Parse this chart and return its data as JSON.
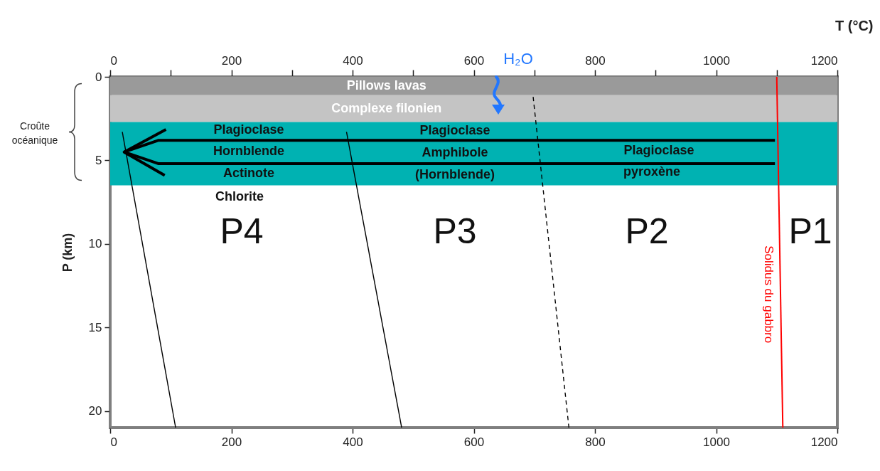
{
  "chart_data": {
    "type": "line",
    "ylabel": "P  (km)",
    "x2label": "T  (°C)",
    "xlim": [
      0,
      1200
    ],
    "xticks": [
      0,
      200,
      400,
      600,
      800,
      1000,
      1200
    ],
    "x2lim": [
      0,
      1200
    ],
    "x2ticks": [
      0,
      {
        "value": 100,
        "label": null
      },
      200,
      {
        "value": 300,
        "label": null
      },
      400,
      {
        "value": 500,
        "label": null
      },
      600,
      {
        "value": 700,
        "label": null
      },
      800,
      {
        "value": 900,
        "label": null
      },
      1000,
      {
        "value": 1100,
        "label": null
      },
      1200
    ],
    "ylim": [
      21,
      0
    ],
    "yticks": [
      0,
      5,
      10,
      15,
      20
    ],
    "grid": false,
    "marker": "none",
    "bands": [
      {
        "axis": "y",
        "from": 0,
        "to": 1.1,
        "label": "Pillows lavas",
        "color": "#9a9a9a"
      },
      {
        "axis": "y",
        "from": 1.1,
        "to": 2.7,
        "label": "Complexe filonien",
        "color": "#c4c4c4"
      },
      {
        "axis": "y",
        "from": 2.7,
        "to": 6.5,
        "color": "#00b2b2"
      }
    ],
    "series": [
      {
        "color": "#000000",
        "x": [
          20,
          108
        ],
        "values": [
          3.3,
          21
        ]
      },
      {
        "color": "#000000",
        "x": [
          390,
          481
        ],
        "values": [
          3.3,
          21
        ]
      },
      {
        "color": "#000000",
        "x": [
          698,
          757
        ],
        "values": [
          1.2,
          21
        ],
        "line_style": "dashed"
      },
      {
        "color": "#000000",
        "x": [
          1097,
          80,
          23
        ],
        "values": [
          3.8,
          3.8,
          4.5
        ]
      },
      {
        "color": "#000000",
        "x": [
          1097,
          80,
          23
        ],
        "values": [
          5.2,
          5.2,
          4.5
        ]
      },
      {
        "name": "Solidus du gabbro",
        "color": "#ff0000",
        "x": [
          1100,
          1110
        ],
        "values": [
          0,
          21
        ]
      }
    ],
    "annotations": [
      "Plagioclase",
      "Hornblende",
      "Actinote",
      "Plagioclase",
      "Amphibole",
      "(Hornblende)",
      "Plagioclase",
      "pyroxène",
      "Chlorite",
      "P4",
      "P3",
      "P2",
      "P1",
      "H₂O",
      "Croûte océanique"
    ]
  }
}
